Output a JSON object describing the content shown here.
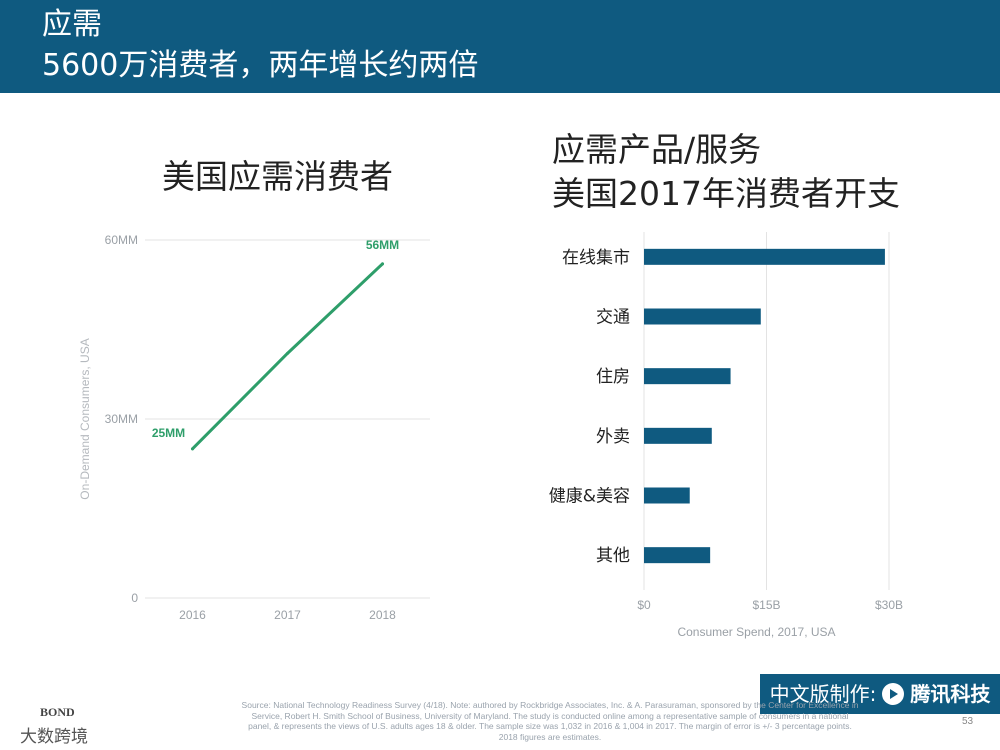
{
  "header": {
    "title": "应需",
    "subtitle": "5600万消费者，两年增长约两倍"
  },
  "left_chart_title": "美国应需消费者",
  "right_chart_title_line1": "应需产品/服务",
  "right_chart_title_line2": "美国2017年消费者开支",
  "footer": {
    "credit": "中文版制作:",
    "brand": "腾讯科技",
    "source": "Source: National Technology Readiness Survey (4/18). Note: authored by Rockbridge Associates, Inc. & A. Parasuraman, sponsored by the Center for Excellence in Service, Robert H. Smith School of Business, University of Maryland. The study is conducted online among a representative sample of consumers in a national panel, & represents the views of U.S. adults ages 18 & older. The sample size was 1,032 in 2016 & 1,004 in 2017. The margin of error is +/- 3 percentage points. 2018 figures are estimates.",
    "page_number": "53",
    "bond_label": "BOND",
    "corner_mark": "大数跨境"
  },
  "chart_data": [
    {
      "type": "line",
      "title": "美国应需消费者",
      "ylabel": "On-Demand Consumers, USA",
      "x": [
        "2016",
        "2017",
        "2018"
      ],
      "series": [
        {
          "values": [
            25,
            41,
            56
          ]
        }
      ],
      "ylim": [
        0,
        60
      ],
      "yticks": [
        0,
        30,
        60
      ],
      "ytick_labels": [
        "0",
        "30MM",
        "60MM"
      ],
      "data_labels": [
        {
          "index": 0,
          "text": "25MM"
        },
        {
          "index": 2,
          "text": "56MM"
        }
      ],
      "color": "#2e9e6a",
      "grid": true
    },
    {
      "type": "bar",
      "orientation": "horizontal",
      "title": "应需产品/服务 美国2017年消费者开支",
      "xlabel": "Consumer Spend, 2017, USA",
      "categories": [
        "在线集市",
        "交通",
        "住房",
        "外卖",
        "健康&美容",
        "其他"
      ],
      "values": [
        29.5,
        14.3,
        10.6,
        8.3,
        5.6,
        8.1
      ],
      "unit": "$B",
      "xlim": [
        0,
        30
      ],
      "xticks": [
        0,
        15,
        30
      ],
      "xtick_labels": [
        "$0",
        "$15B",
        "$30B"
      ],
      "color": "#0f5a80",
      "grid": true
    }
  ]
}
